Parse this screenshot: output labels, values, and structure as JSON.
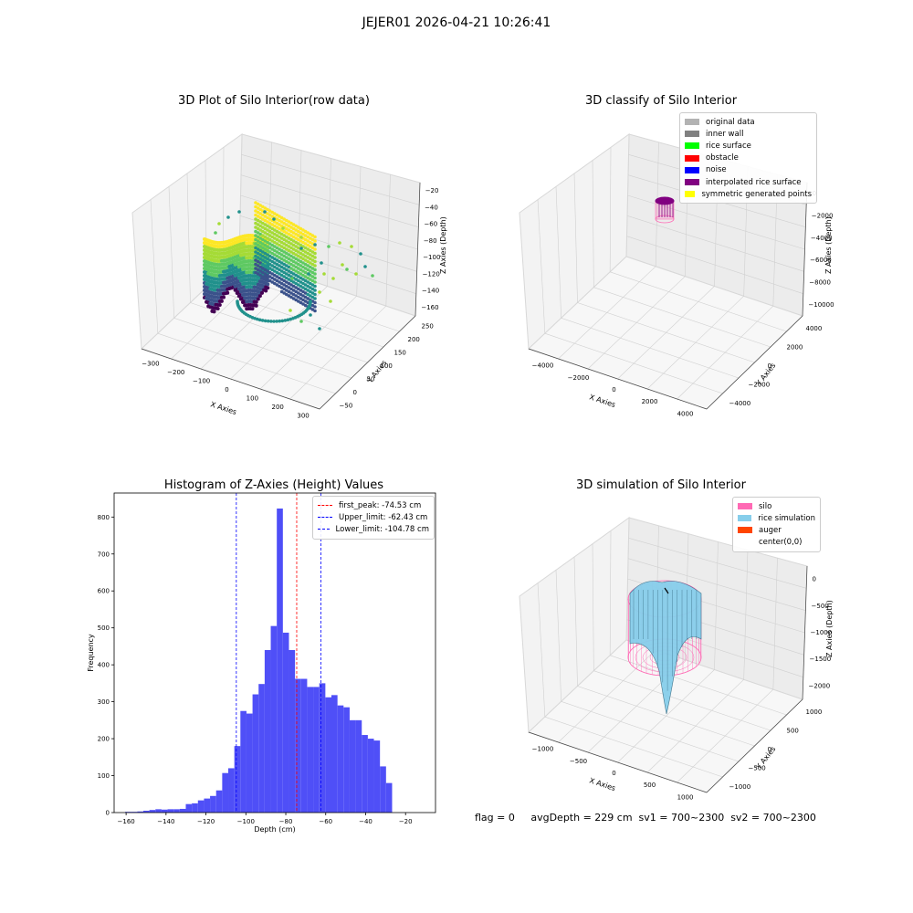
{
  "suptitle": "JEJER01 2026-04-21 10:26:41",
  "footer": {
    "text": "flag = 0     avgDepth = 229 cm  sv1 = 700~2300  sv2 = 700~2300"
  },
  "colors": {
    "histogram_bar": "#4f4ff7",
    "first_peak_line": "#ff0000",
    "limit_line": "#0000ff",
    "silo": "#ff69b4",
    "rice_simulation": "#87ceeb",
    "auger": "#ff4500",
    "classified_points": "#800080"
  },
  "chart_data": [
    {
      "type": "scatter",
      "subtype": "3d-scatter",
      "title": "3D Plot of Silo Interior(row data)",
      "xlabel": "X Axies",
      "ylabel": "Y Axies",
      "zlabel": "Z Axies (Depth)",
      "xticks": [
        "−300",
        "−200",
        "−100",
        "0",
        "100",
        "200",
        "300"
      ],
      "yticks": [
        "−50",
        "0",
        "50",
        "100",
        "150",
        "200",
        "250"
      ],
      "zticks": [
        "−20",
        "−40",
        "−60",
        "−80",
        "−100",
        "−120",
        "−140",
        "−160"
      ],
      "colormap": "viridis",
      "grid": true
    },
    {
      "type": "scatter",
      "subtype": "3d-scatter",
      "title": "3D classify of Silo Interior",
      "xlabel": "X Axies",
      "ylabel": "Y Axies",
      "zlabel": "Z Axies (Depth)",
      "xticks": [
        "−4000",
        "−2000",
        "0",
        "2000",
        "4000"
      ],
      "yticks": [
        "−4000",
        "−2000",
        "0",
        "2000",
        "4000"
      ],
      "zticks": [
        "0",
        "−2000",
        "−4000",
        "−6000",
        "−8000",
        "−10000"
      ],
      "legend_position": "top-right",
      "legend": [
        {
          "label": "original data",
          "color": "#b3b3b3"
        },
        {
          "label": "inner wall",
          "color": "#808080"
        },
        {
          "label": "rice surface",
          "color": "#00ff00"
        },
        {
          "label": "obstacle",
          "color": "#ff0000"
        },
        {
          "label": "noise",
          "color": "#0000ff"
        },
        {
          "label": "interpolated rice surface",
          "color": "#800080"
        },
        {
          "label": "symmetric generated points",
          "color": "#ffff00"
        }
      ],
      "grid": true
    },
    {
      "type": "bar",
      "subtype": "histogram",
      "title": "Histogram of Z-Axies (Height) Values",
      "xlabel": "Depth (cm)",
      "ylabel": "Frequency",
      "xlim": [
        -166,
        -5
      ],
      "ylim": [
        0,
        865
      ],
      "xticks": [
        -160,
        -140,
        -120,
        -100,
        -80,
        -60,
        -40,
        -20
      ],
      "yticks": [
        0,
        100,
        200,
        300,
        400,
        500,
        600,
        700,
        800
      ],
      "bin_width": 3.04,
      "bin_start": -160.5,
      "values": [
        2,
        2,
        3,
        5,
        7,
        9,
        8,
        9,
        9,
        10,
        23,
        25,
        33,
        38,
        45,
        60,
        107,
        120,
        180,
        275,
        268,
        320,
        348,
        440,
        505,
        823,
        487,
        440,
        362,
        362,
        340,
        340,
        350,
        312,
        318,
        290,
        285,
        250,
        250,
        210,
        200,
        195,
        125,
        80
      ],
      "vlines": [
        {
          "label": "first_peak: -74.53 cm",
          "x": -74.53,
          "color": "#ff0000"
        },
        {
          "label": "Upper_limit: -62.43 cm",
          "x": -62.43,
          "color": "#0000ff"
        },
        {
          "label": "Lower_limit: -104.78 cm",
          "x": -104.78,
          "color": "#0000ff"
        }
      ],
      "legend_position": "top-right",
      "grid": false
    },
    {
      "type": "area",
      "subtype": "3d-surface",
      "title": "3D simulation of Silo Interior",
      "xlabel": "X Axies",
      "ylabel": "Y Axies",
      "zlabel": "Z Axies (Depth)",
      "xticks": [
        "−1000",
        "−500",
        "0",
        "500",
        "1000"
      ],
      "yticks": [
        "−1000",
        "−500",
        "0",
        "500",
        "1000"
      ],
      "zticks": [
        "0",
        "−500",
        "−1000",
        "−1500",
        "−2000"
      ],
      "legend_position": "top-right",
      "legend": [
        {
          "label": "silo",
          "color": "#ff69b4"
        },
        {
          "label": "rice simulation",
          "color": "#87ceeb"
        },
        {
          "label": "auger",
          "color": "#ff4500"
        },
        {
          "label": "center(0,0)",
          "color": ""
        }
      ],
      "grid": true
    }
  ]
}
